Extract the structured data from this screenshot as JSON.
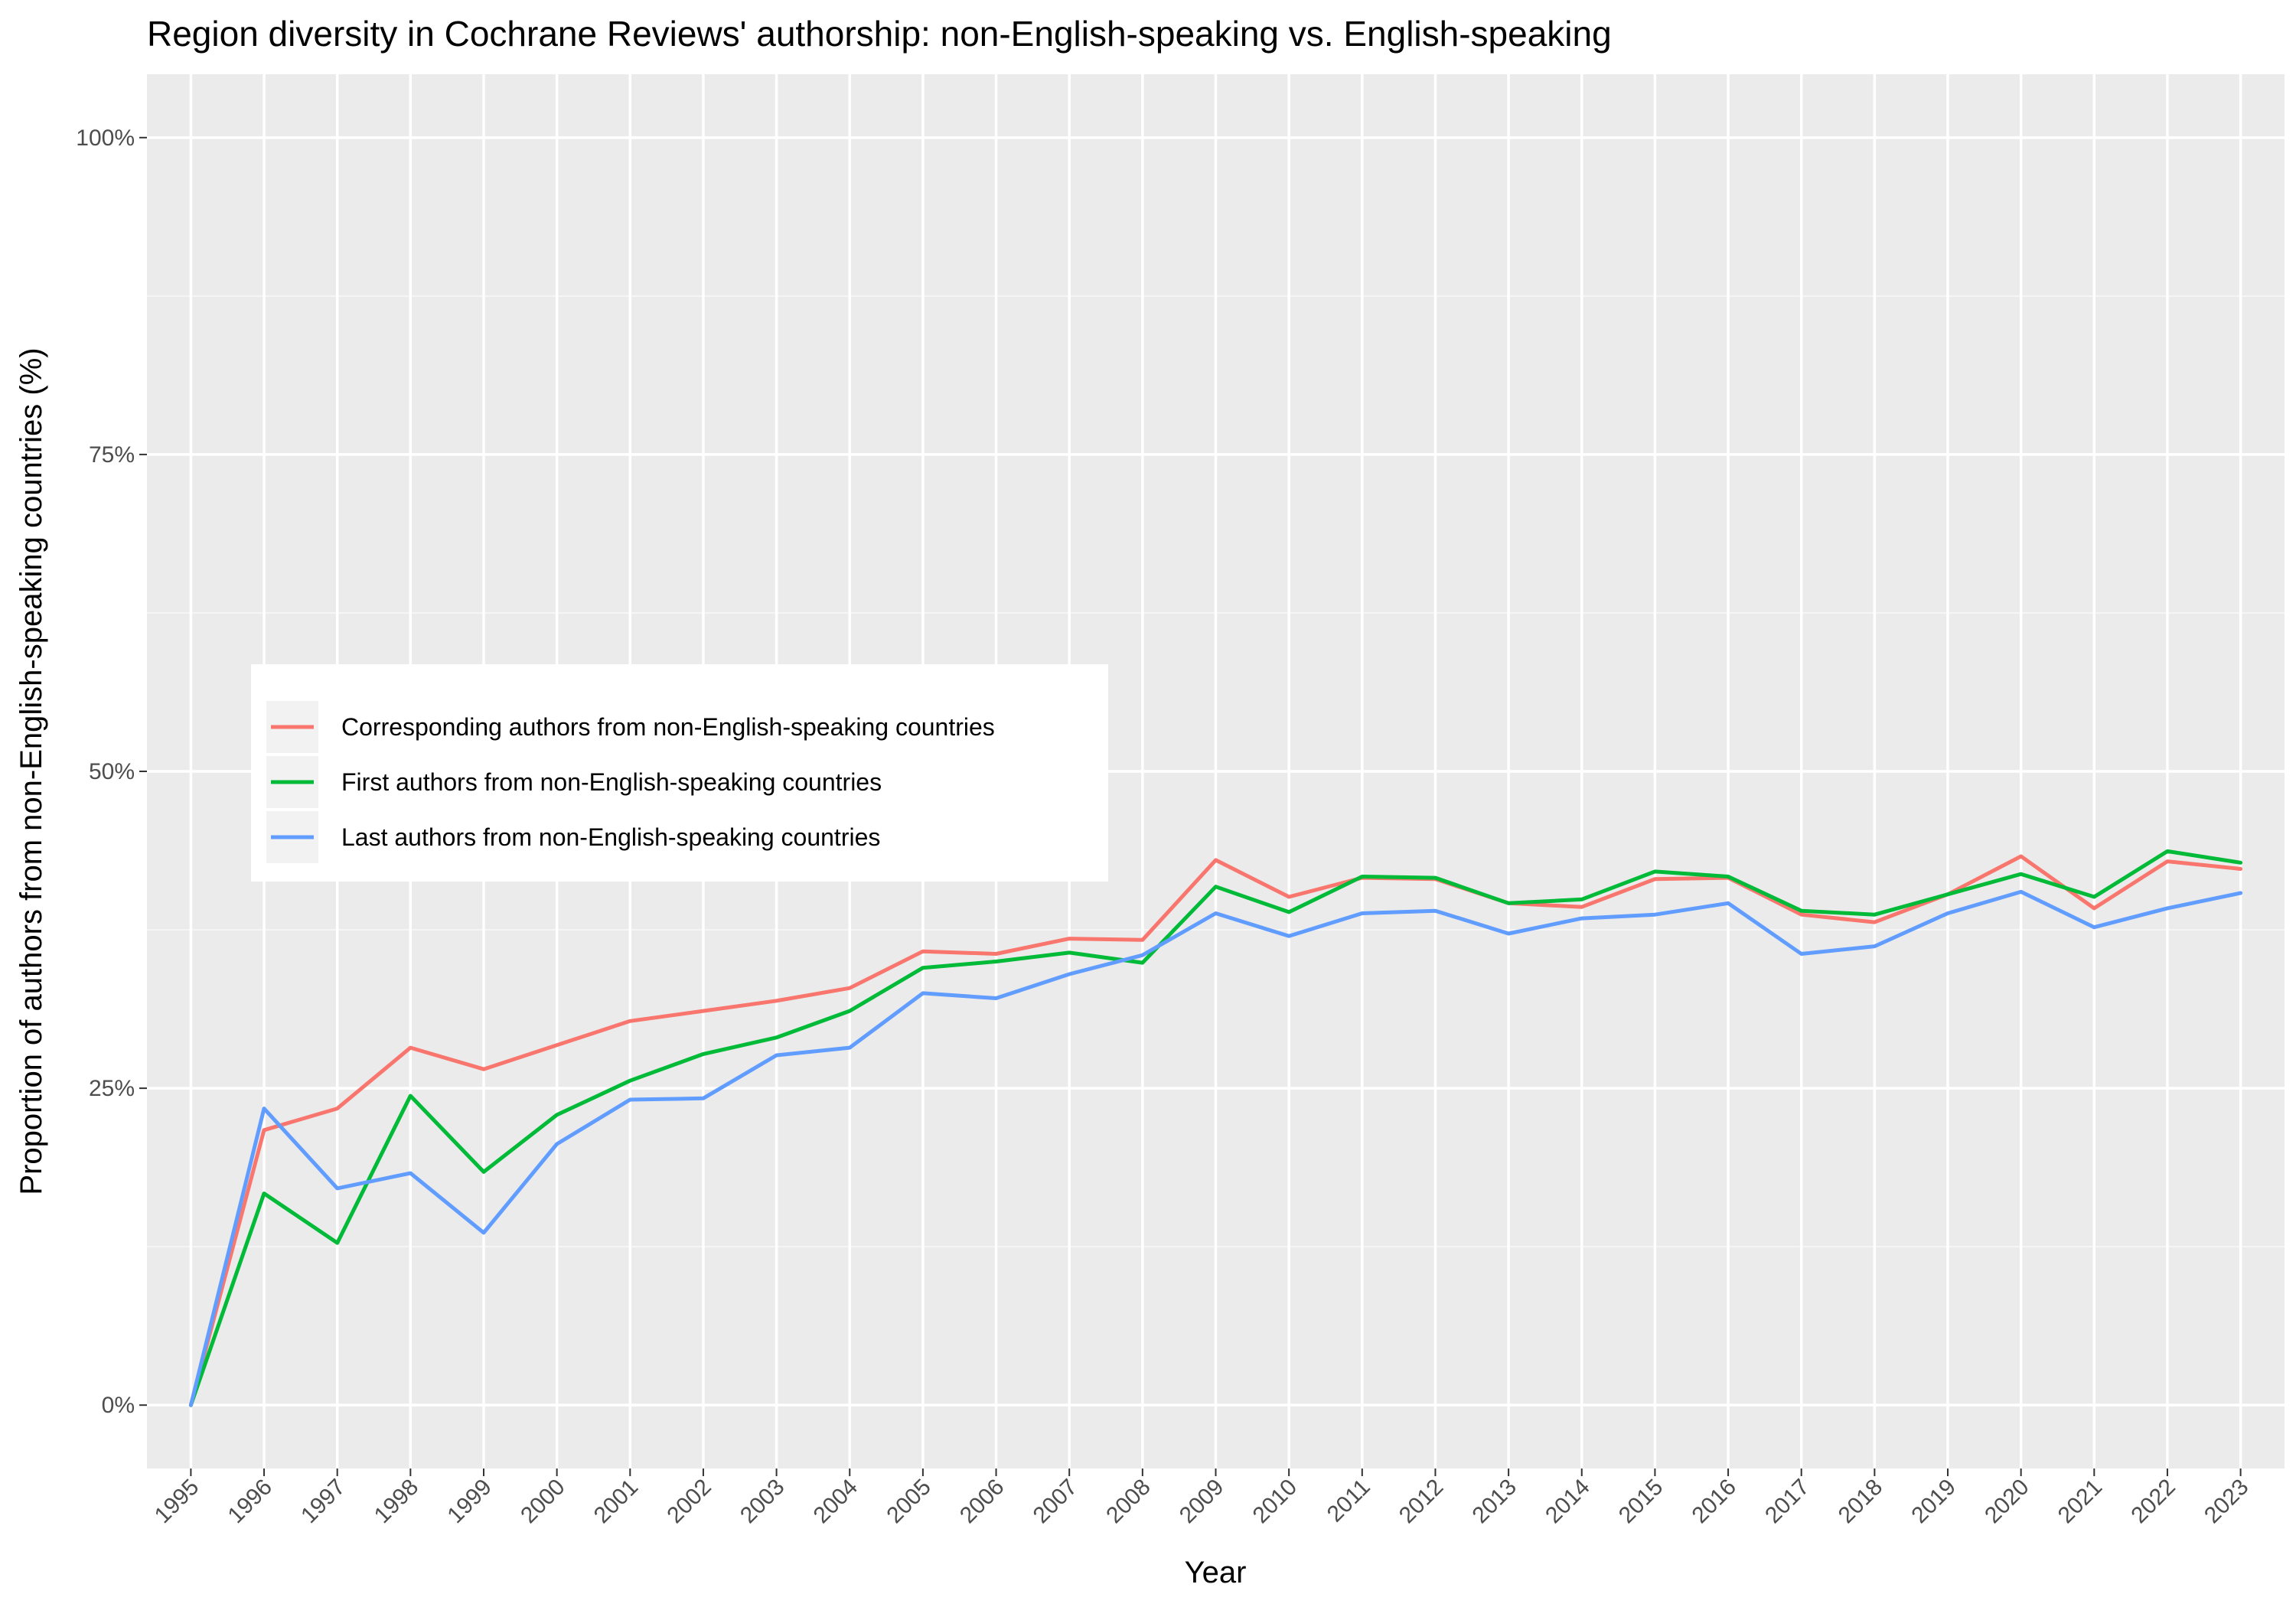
{
  "chart_data": {
    "type": "line",
    "title": "Region diversity in Cochrane Reviews' authorship: non-English-speaking vs. English-speaking",
    "xlabel": "Year",
    "ylabel": "Proportion of authors from non-English-speaking countries (%)",
    "ylim": [
      -0.05,
      1.05
    ],
    "yticks": [
      0,
      0.25,
      0.5,
      0.75,
      1.0
    ],
    "ytick_labels": [
      "0%",
      "25%",
      "50%",
      "75%",
      "100%"
    ],
    "grid": true,
    "legend_position": "left",
    "x": [
      1995,
      1996,
      1997,
      1998,
      1999,
      2000,
      2001,
      2002,
      2003,
      2004,
      2005,
      2006,
      2007,
      2008,
      2009,
      2010,
      2011,
      2012,
      2013,
      2014,
      2015,
      2016,
      2017,
      2018,
      2019,
      2020,
      2021,
      2022,
      2023
    ],
    "series": [
      {
        "name": "Corresponding authors from non-English-speaking countries",
        "color": "#F8766D",
        "values": [
          0.0,
          0.217,
          0.234,
          0.282,
          0.265,
          0.284,
          0.303,
          0.311,
          0.319,
          0.329,
          0.358,
          0.356,
          0.368,
          0.367,
          0.43,
          0.401,
          0.416,
          0.415,
          0.396,
          0.393,
          0.415,
          0.416,
          0.387,
          0.381,
          0.403,
          0.433,
          0.392,
          0.429,
          0.423
        ]
      },
      {
        "name": "First authors from non-English-speaking countries",
        "color": "#00BA38",
        "values": [
          0.0,
          0.167,
          0.128,
          0.244,
          0.184,
          0.229,
          0.256,
          0.277,
          0.29,
          0.311,
          0.345,
          0.35,
          0.357,
          0.349,
          0.409,
          0.389,
          0.417,
          0.416,
          0.396,
          0.399,
          0.421,
          0.417,
          0.39,
          0.387,
          0.403,
          0.419,
          0.401,
          0.437,
          0.428
        ]
      },
      {
        "name": "Last authors from non-English-speaking countries",
        "color": "#619CFF",
        "values": [
          0.0,
          0.234,
          0.171,
          0.183,
          0.136,
          0.206,
          0.241,
          0.242,
          0.276,
          0.282,
          0.325,
          0.321,
          0.34,
          0.355,
          0.388,
          0.37,
          0.388,
          0.39,
          0.372,
          0.384,
          0.387,
          0.396,
          0.356,
          0.362,
          0.388,
          0.405,
          0.377,
          0.392,
          0.404
        ]
      }
    ]
  }
}
